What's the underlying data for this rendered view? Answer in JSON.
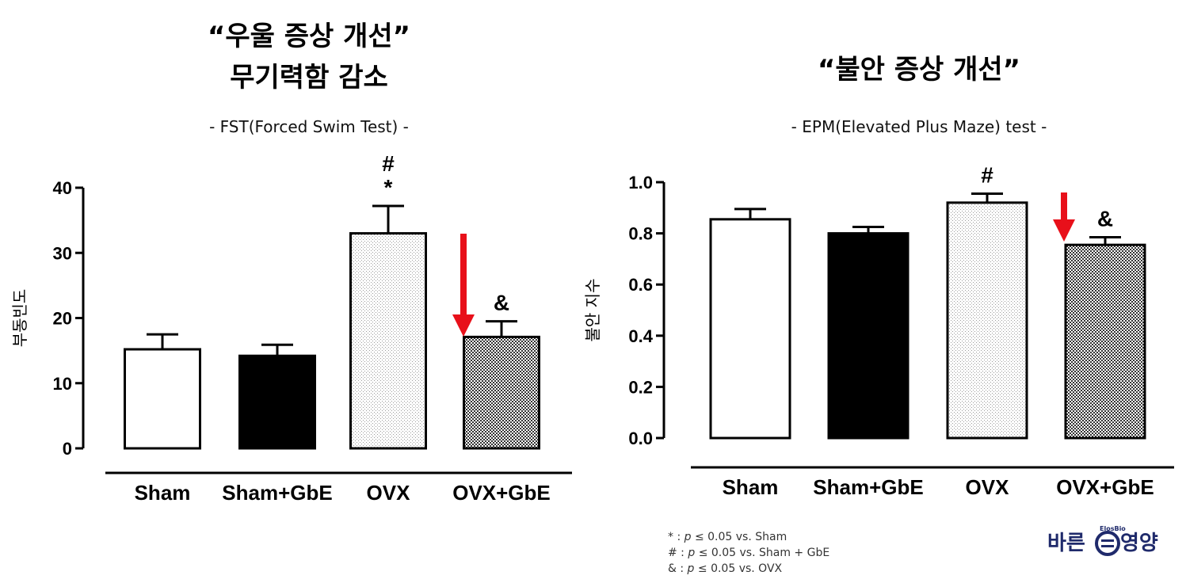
{
  "left_panel": {
    "title_line1": "“우울 증상 개선”",
    "title_line2": "무기력함 감소",
    "subtitle": "- FST(Forced Swim Test) -"
  },
  "right_panel": {
    "title_line1": "“불안 증상 개선”",
    "subtitle": "- EPM(Elevated Plus Maze) test -"
  },
  "chart_data": [
    {
      "type": "bar",
      "categories": [
        "Sham",
        "Sham+GbE",
        "OVX",
        "OVX+GbE"
      ],
      "values": [
        15.2,
        14.2,
        33,
        17.1
      ],
      "errors": [
        2.3,
        1.7,
        4.2,
        2.4
      ],
      "significance": [
        "",
        "",
        "#\n*",
        "&"
      ],
      "highlight_arrow_category": "OVX+GbE",
      "fills": [
        "white",
        "black",
        "light-dotted",
        "dark-checkered"
      ],
      "ylabel": "부동빈도",
      "ylim": [
        0,
        40
      ],
      "yticks": [
        "0",
        "10",
        "20",
        "30",
        "40"
      ]
    },
    {
      "type": "bar",
      "categories": [
        "Sham",
        "Sham+GbE",
        "OVX",
        "OVX+GbE"
      ],
      "values": [
        0.855,
        0.8,
        0.92,
        0.755
      ],
      "errors": [
        0.04,
        0.025,
        0.035,
        0.03
      ],
      "significance": [
        "",
        "",
        "#",
        "&"
      ],
      "highlight_arrow_category": "OVX+GbE",
      "fills": [
        "white",
        "black",
        "light-dotted",
        "dark-checkered"
      ],
      "ylabel": "불안 지수",
      "ylim": [
        0,
        1.0
      ],
      "yticks": [
        "0.0",
        "0.2",
        "0.4",
        "0.6",
        "0.8",
        "1.0"
      ]
    }
  ],
  "notes": [
    {
      "symbol": "* :",
      "p": "p",
      "text": "≤ 0.05 vs. Sham"
    },
    {
      "symbol": "# :",
      "p": "p",
      "text": "≤ 0.05 vs. Sham + GbE"
    },
    {
      "symbol": "& :",
      "p": "p",
      "text": "≤ 0.05 vs. OVX"
    }
  ],
  "logo": {
    "text_left": "바른",
    "text_right": "영양",
    "arc_text": "ElosBio",
    "color": "#1f2a6b"
  },
  "colors": {
    "arrow": "#e8101a",
    "bar_outline": "#000000"
  }
}
